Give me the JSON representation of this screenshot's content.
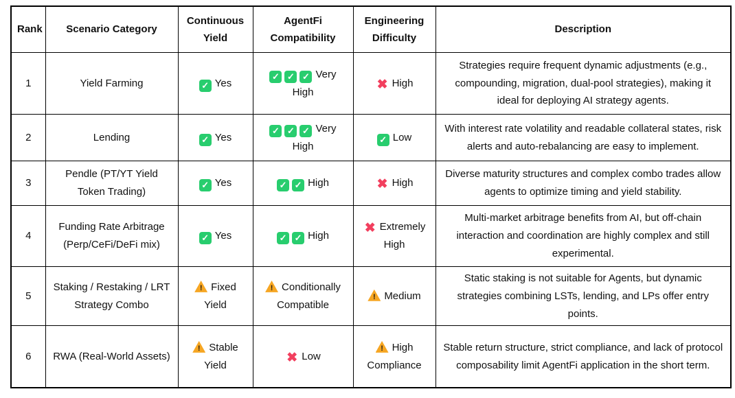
{
  "colors": {
    "check_green": "#28CD6E",
    "cross_pink": "#F23F5E",
    "warning_orange": "#F6A623"
  },
  "icon_legend": {
    "check": "check-icon",
    "cross": "cross-icon",
    "warn": "warning-icon"
  },
  "table": {
    "headers": [
      "Rank",
      "Scenario Category",
      "Continuous Yield",
      "AgentFi Compatibility",
      "Engineering Difficulty",
      "Description"
    ],
    "rows": [
      {
        "rank": "1",
        "category": "Yield Farming",
        "continuous_yield": {
          "icons": [
            "check"
          ],
          "label": "Yes"
        },
        "agentfi_compatibility": {
          "icons": [
            "check",
            "check",
            "check"
          ],
          "label": "Very High"
        },
        "engineering_difficulty": {
          "icons": [
            "cross"
          ],
          "label": "High"
        },
        "description": "Strategies require frequent dynamic adjustments (e.g., compounding, migration, dual-pool strategies), making it ideal for deploying AI strategy agents."
      },
      {
        "rank": "2",
        "category": "Lending",
        "continuous_yield": {
          "icons": [
            "check"
          ],
          "label": "Yes"
        },
        "agentfi_compatibility": {
          "icons": [
            "check",
            "check",
            "check"
          ],
          "label": "Very High"
        },
        "engineering_difficulty": {
          "icons": [
            "check"
          ],
          "label": "Low"
        },
        "description": "With interest rate volatility and readable collateral states, risk alerts and auto-rebalancing are easy to implement."
      },
      {
        "rank": "3",
        "category": "Pendle (PT/YT Yield Token Trading)",
        "continuous_yield": {
          "icons": [
            "check"
          ],
          "label": "Yes"
        },
        "agentfi_compatibility": {
          "icons": [
            "check",
            "check"
          ],
          "label": "High"
        },
        "engineering_difficulty": {
          "icons": [
            "cross"
          ],
          "label": "High"
        },
        "description": "Diverse maturity structures and complex combo trades allow agents to optimize timing and yield stability."
      },
      {
        "rank": "4",
        "category": "Funding Rate Arbitrage (Perp/CeFi/DeFi mix)",
        "continuous_yield": {
          "icons": [
            "check"
          ],
          "label": "Yes"
        },
        "agentfi_compatibility": {
          "icons": [
            "check",
            "check"
          ],
          "label": "High"
        },
        "engineering_difficulty": {
          "icons": [
            "cross"
          ],
          "label": "Extremely High"
        },
        "description": "Multi-market arbitrage benefits from AI, but off-chain interaction and coordination are highly complex and still experimental."
      },
      {
        "rank": "5",
        "category": "Staking / Restaking / LRT Strategy Combo",
        "continuous_yield": {
          "icons": [
            "warn"
          ],
          "label": "Fixed Yield"
        },
        "agentfi_compatibility": {
          "icons": [
            "warn"
          ],
          "label": "Conditionally Compatible"
        },
        "engineering_difficulty": {
          "icons": [
            "warn"
          ],
          "label": "Medium"
        },
        "description": "Static staking is not suitable for Agents, but dynamic strategies combining LSTs, lending, and LPs offer entry points."
      },
      {
        "rank": "6",
        "category": "RWA (Real-World Assets)",
        "continuous_yield": {
          "icons": [
            "warn"
          ],
          "label": "Stable Yield"
        },
        "agentfi_compatibility": {
          "icons": [
            "cross"
          ],
          "label": "Low"
        },
        "engineering_difficulty": {
          "icons": [
            "warn"
          ],
          "label": "High Compliance"
        },
        "description": "Stable return structure, strict compliance, and lack of protocol composability limit AgentFi application in the short term."
      }
    ]
  }
}
